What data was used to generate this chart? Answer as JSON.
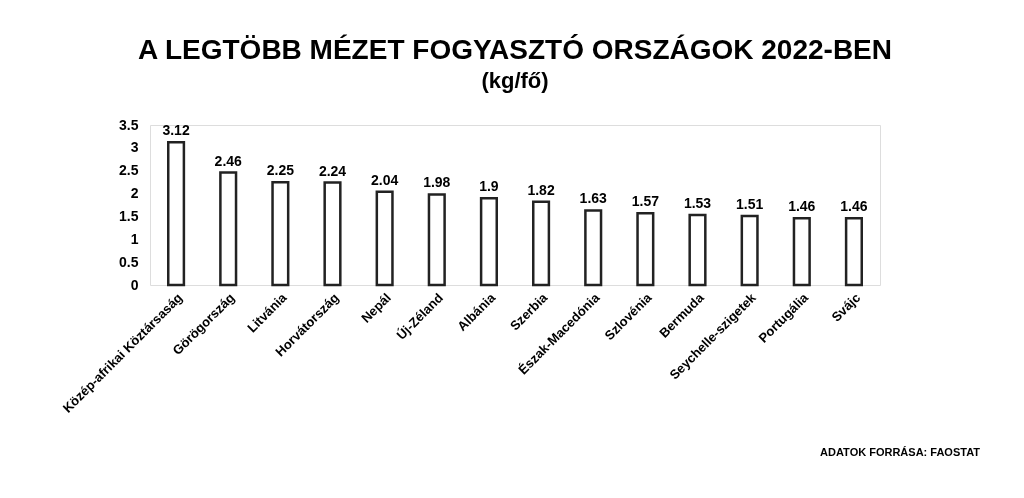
{
  "chart_data": {
    "type": "bar",
    "title": "A LEGTÖBB MÉZET FOGYASZTÓ ORSZÁGOK 2022-BEN",
    "subtitle": "(kg/fő)",
    "categories": [
      "Közép-afrikai Köztársaság",
      "Görögország",
      "Litvánia",
      "Horvátország",
      "Nepál",
      "Új-Zéland",
      "Albánia",
      "Szerbia",
      "Észak-Macedónia",
      "Szlovénia",
      "Bermuda",
      "Seychelle-szigetek",
      "Portugália",
      "Svájc"
    ],
    "values": [
      3.12,
      2.46,
      2.25,
      2.24,
      2.04,
      1.98,
      1.9,
      1.82,
      1.63,
      1.57,
      1.53,
      1.51,
      1.46,
      1.46
    ],
    "color": "#ffffff",
    "ylim": [
      0,
      3.5
    ],
    "yticks": [
      0,
      0.5,
      1,
      1.5,
      2,
      2.5,
      3,
      3.5
    ],
    "data_labels": true,
    "annotations": [
      "ADATOK FORRÁSA: FAOSTAT"
    ]
  }
}
